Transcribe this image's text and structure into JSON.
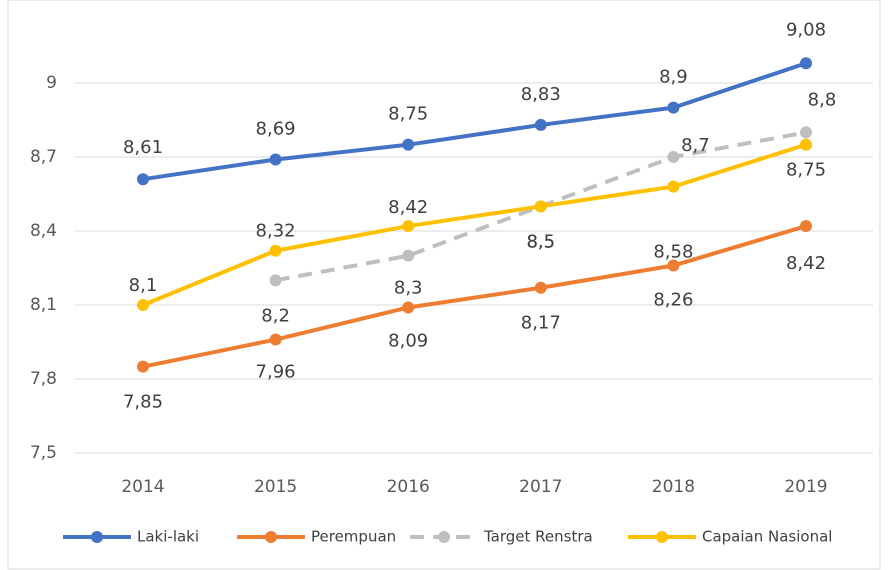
{
  "chart_data": {
    "type": "line",
    "categories": [
      "2014",
      "2015",
      "2016",
      "2017",
      "2018",
      "2019"
    ],
    "series": [
      {
        "name": "Laki-laki",
        "color": "#4472c4",
        "values": [
          8.61,
          8.69,
          8.75,
          8.83,
          8.9,
          9.08
        ],
        "value_labels": [
          "8,61",
          "8,69",
          "8,75",
          "8,83",
          "8,9",
          "9,08"
        ]
      },
      {
        "name": "Perempuan",
        "color": "#ed7d31",
        "values": [
          7.85,
          7.96,
          8.09,
          8.17,
          8.26,
          8.42
        ],
        "value_labels": [
          "7,85",
          "7,96",
          "8,09",
          "8,17",
          "8,26",
          "8,42"
        ]
      },
      {
        "name": "Target Renstra",
        "color": "#bfbfbf",
        "dashed": true,
        "values": [
          null,
          8.2,
          8.3,
          8.5,
          8.7,
          8.8
        ],
        "value_labels": [
          null,
          "8,2",
          "8,3",
          "8,5",
          "8,7",
          "8,8"
        ]
      },
      {
        "name": "Capaian Nasional",
        "color": "#ffc000",
        "values": [
          8.1,
          8.32,
          8.42,
          8.5,
          8.58,
          8.75
        ],
        "value_labels": [
          "8,1",
          "8,32",
          "8,42",
          "8,5",
          "8,58",
          "8,75"
        ]
      }
    ],
    "ylim": [
      7.5,
      9.3
    ],
    "yticks": [
      {
        "value": 7.5,
        "label": "7,5"
      },
      {
        "value": 7.8,
        "label": "7,8"
      },
      {
        "value": 8.1,
        "label": "8,1"
      },
      {
        "value": 8.4,
        "label": "8,4"
      },
      {
        "value": 8.7,
        "label": "8,7"
      },
      9
    ],
    "grid": true,
    "legend": "bottom"
  }
}
